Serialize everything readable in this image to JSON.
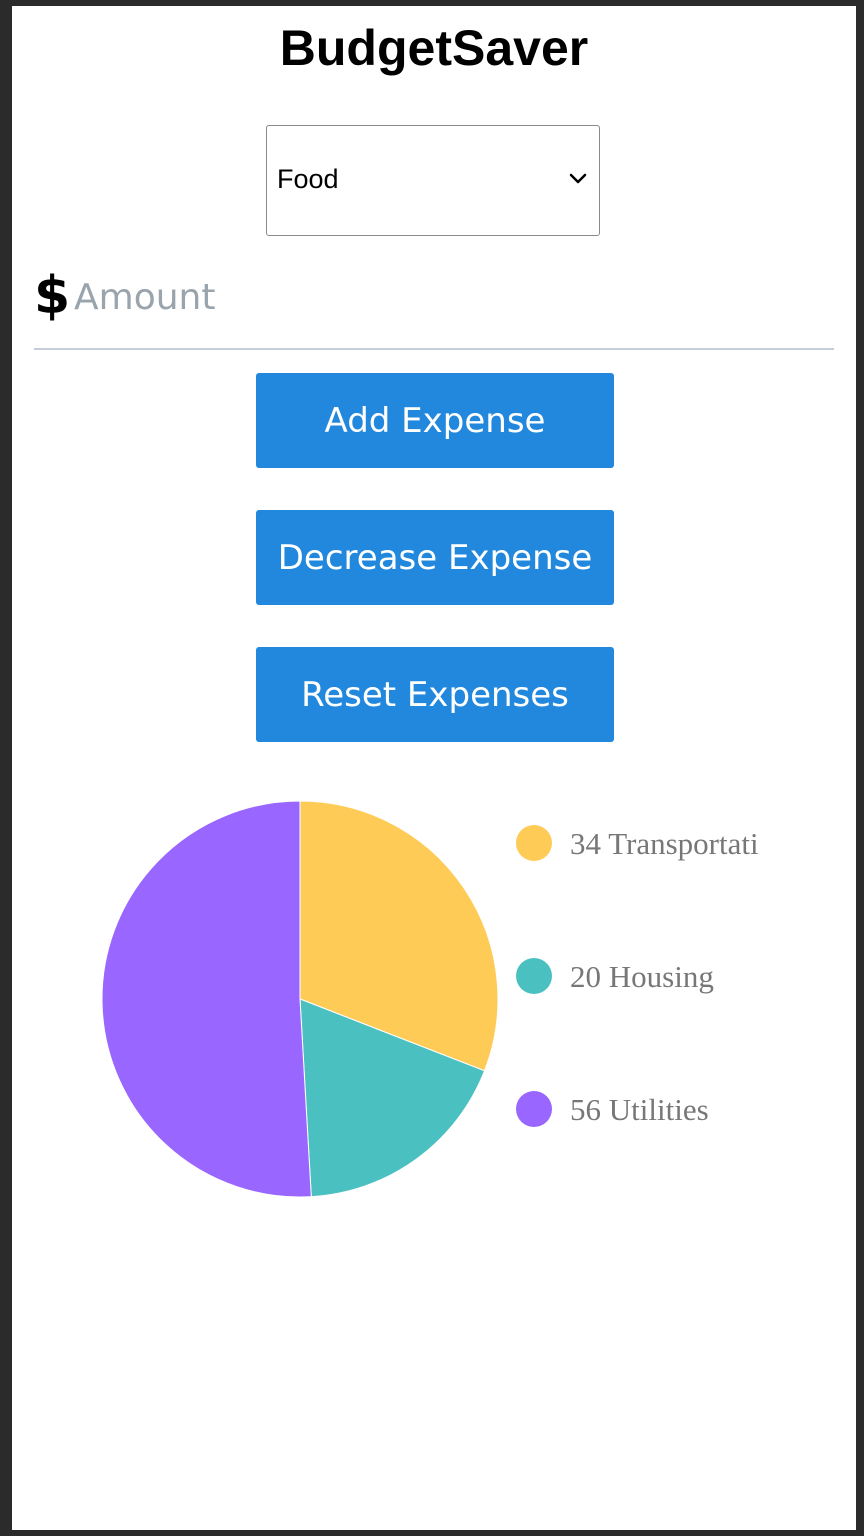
{
  "app": {
    "title": "BudgetSaver"
  },
  "category_select": {
    "selected": "Food"
  },
  "amount": {
    "currency_symbol": "$",
    "placeholder": "Amount",
    "value": ""
  },
  "buttons": {
    "add_label": "Add Expense",
    "decrease_label": "Decrease Expense",
    "reset_label": "Reset Expenses"
  },
  "colors": {
    "button": "#2288dd",
    "transportation": "#ffcb57",
    "housing": "#4bc0c0",
    "utilities": "#9966ff"
  },
  "chart_data": {
    "type": "pie",
    "categories": [
      "Transportati",
      "Housing",
      "Utilities"
    ],
    "values": [
      34,
      20,
      56
    ],
    "colors": [
      "#ffcb57",
      "#4bc0c0",
      "#9966ff"
    ],
    "legend": [
      "34 Transportati",
      "20 Housing",
      "56 Utilities"
    ],
    "legend_position": "right"
  }
}
